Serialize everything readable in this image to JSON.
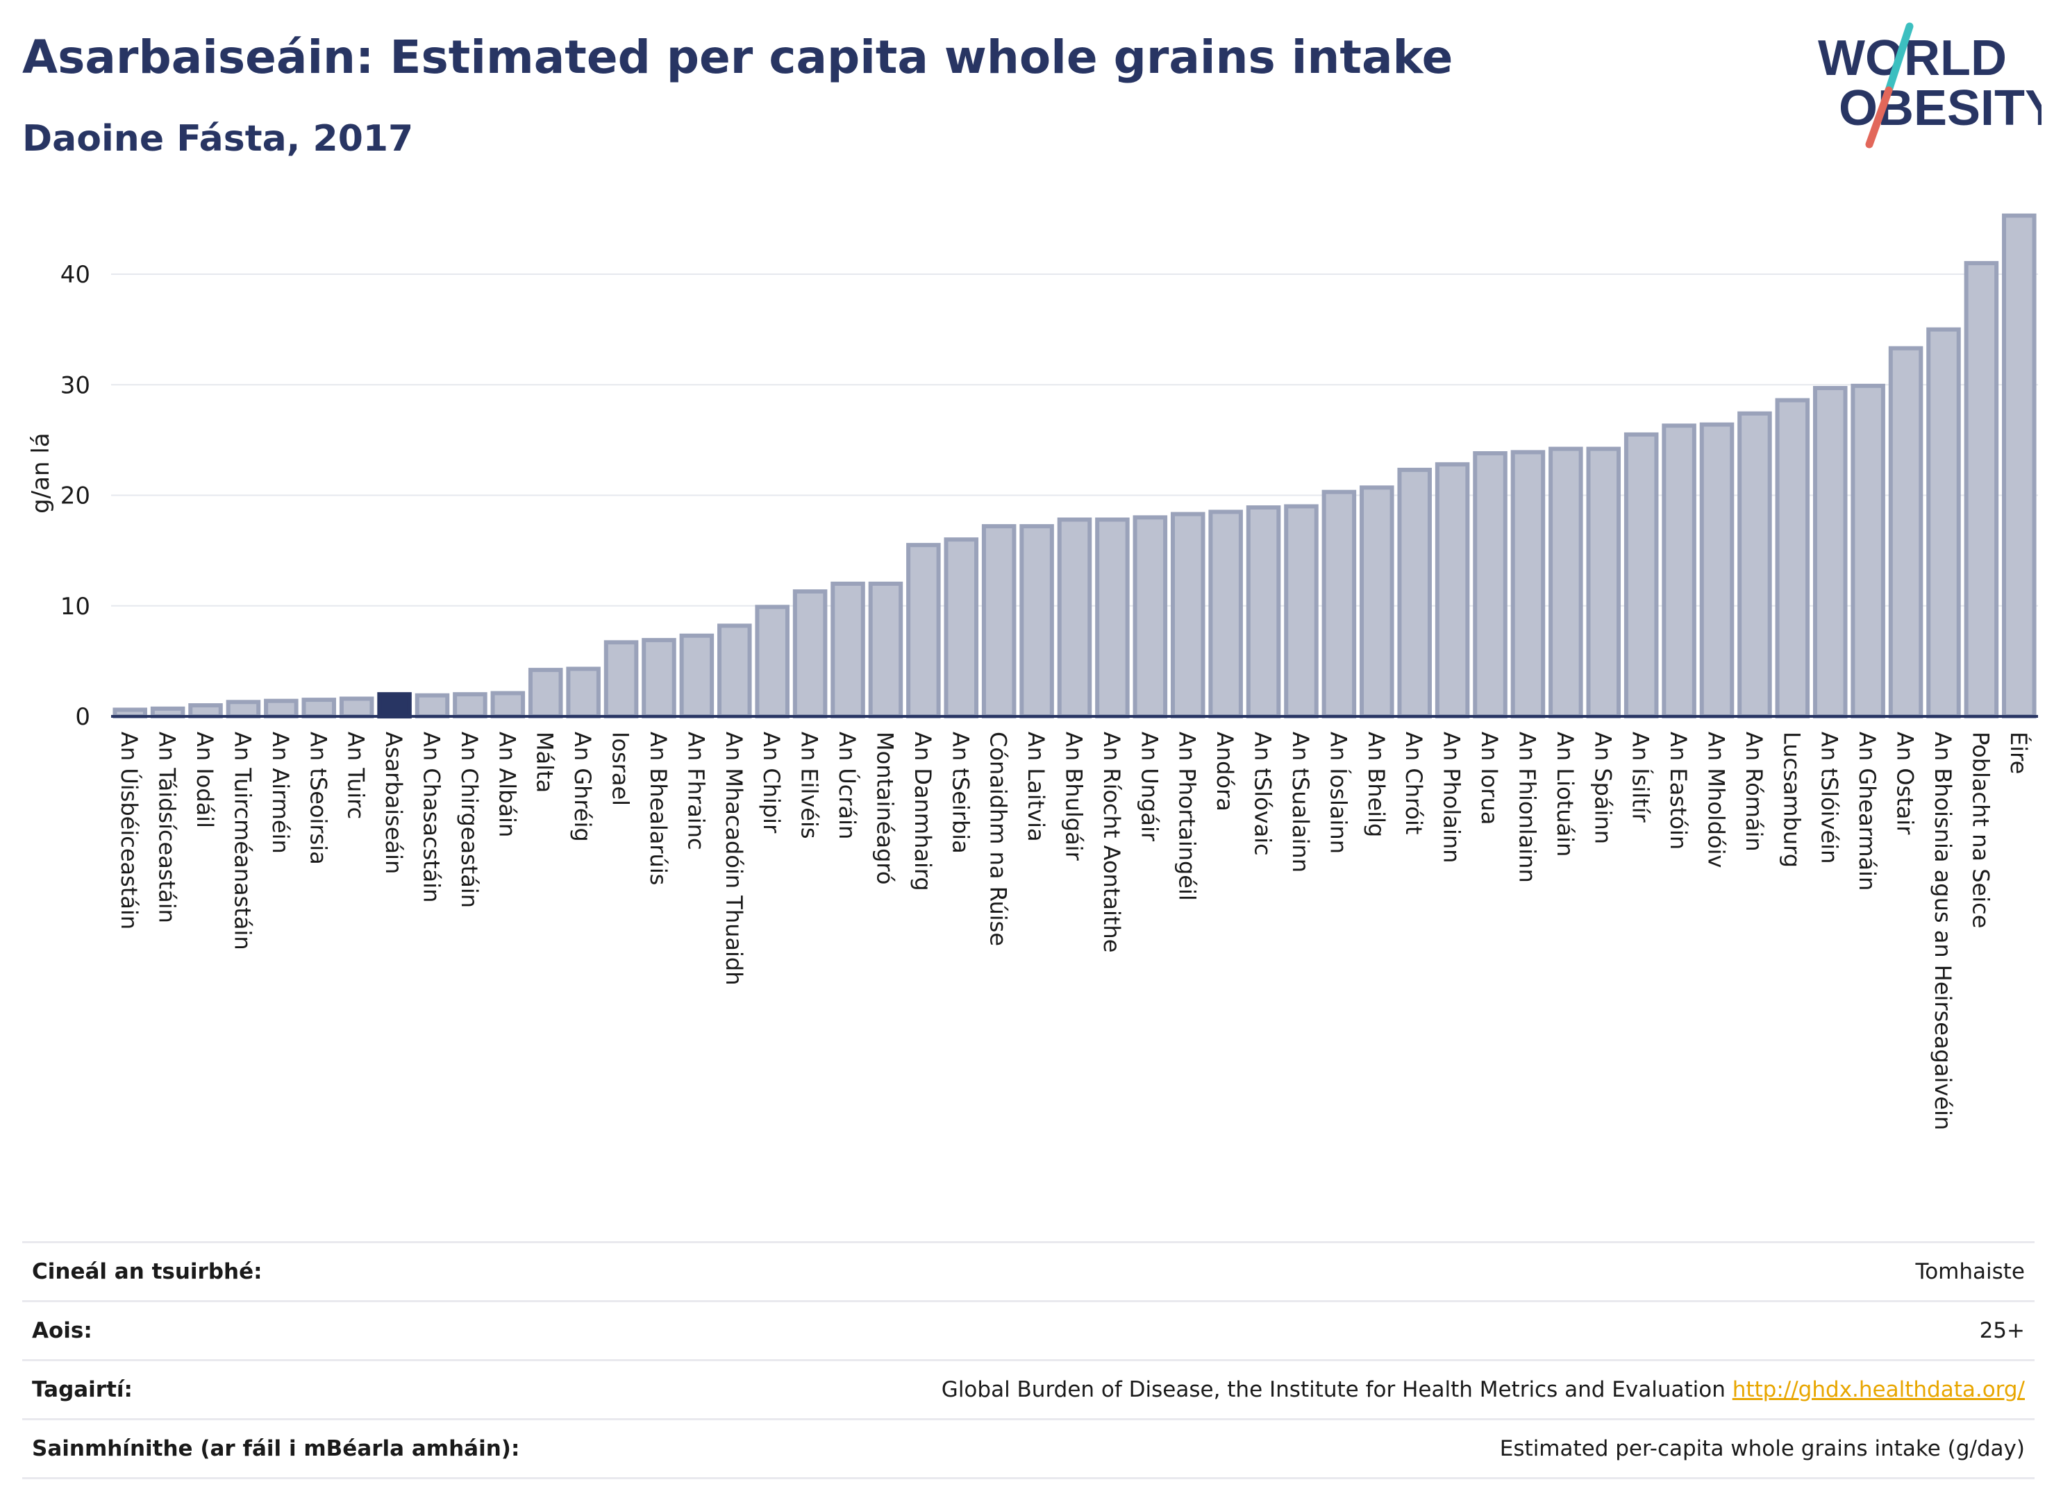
{
  "header": {
    "title": "Asarbaiseáin: Estimated per capita whole grains intake",
    "subtitle": "Daoine Fásta, 2017"
  },
  "logo": {
    "line1": "WORLD",
    "line2": "OBESITY",
    "text_color": "#283563",
    "slash_top_color": "#3cbfc0",
    "slash_bottom_color": "#e2675a"
  },
  "colors": {
    "bar": "#bcc1d0",
    "bar_border": "#9aa2ba",
    "highlight": "#283563",
    "axis_text": "#1a1a1a",
    "grid": "#e6e8ee"
  },
  "chart_data": {
    "type": "bar",
    "ylabel": "g/an lá",
    "ylim": [
      0,
      47
    ],
    "yticks": [
      0,
      10,
      20,
      30,
      40
    ],
    "highlight": "Asarbaiseáin",
    "categories": [
      "An Úisbéiceastáin",
      "An Táidsíceastáin",
      "An Iodáil",
      "An Tuircméanastáin",
      "An Airméin",
      "An tSeoirsia",
      "An Tuirc",
      "Asarbaiseáin",
      "An Chasacstáin",
      "An Chirgeastáin",
      "An Albáin",
      "Málta",
      "An Ghréig",
      "Iosrael",
      "An Bhealarúis",
      "An Fhrainc",
      "An Mhacadóin Thuaidh",
      "An Chipir",
      "An Eilvéis",
      "An Úcráin",
      "Montainéagró",
      "An Danmhairg",
      "An tSeirbia",
      "Cónaidhm na Rúise",
      "An Laitvia",
      "An Bhulgáir",
      "An Ríocht Aontaithe",
      "An Ungáir",
      "An Phortaingéil",
      "Andóra",
      "An tSlóvaic",
      "An tSualainn",
      "An Íoslainn",
      "An Bheilg",
      "An Chróit",
      "An Pholainn",
      "An Iorua",
      "An Fhionlainn",
      "An Liotuáin",
      "An Spáinn",
      "An Ísiltír",
      "An Eastóin",
      "An Mholdóiv",
      "An Rómáin",
      "Lucsamburg",
      "An tSlóivéin",
      "An Ghearmáin",
      "An Ostair",
      "An Bhoisnia agus an Heirseagaivéin",
      "Poblacht na Seice",
      "Éire"
    ],
    "values": [
      0.6,
      0.7,
      1.0,
      1.3,
      1.4,
      1.5,
      1.6,
      2.0,
      1.9,
      2.0,
      2.1,
      4.2,
      4.3,
      6.7,
      6.9,
      7.3,
      8.2,
      9.9,
      11.3,
      12.0,
      12.0,
      15.5,
      16.0,
      17.2,
      17.2,
      17.8,
      17.8,
      18.0,
      18.3,
      18.5,
      18.9,
      19.0,
      20.3,
      20.7,
      22.3,
      22.8,
      23.8,
      23.9,
      24.2,
      24.2,
      25.5,
      26.3,
      26.4,
      27.4,
      28.6,
      29.7,
      29.9,
      33.3,
      35.0,
      41.0,
      45.3
    ]
  },
  "info_table": [
    {
      "label": "Cineál an tsuirbhé:",
      "value": "Tomhaiste",
      "link": ""
    },
    {
      "label": "Aois:",
      "value": "25+",
      "link": ""
    },
    {
      "label": "Tagairtí:",
      "value": "Global Burden of Disease, the Institute for Health Metrics and Evaluation",
      "link": "http://ghdx.healthdata.org/"
    },
    {
      "label": "Sainmhínithe (ar fáil i mBéarla amháin):",
      "value": "Estimated per-capita whole grains intake (g/day)",
      "link": ""
    }
  ]
}
